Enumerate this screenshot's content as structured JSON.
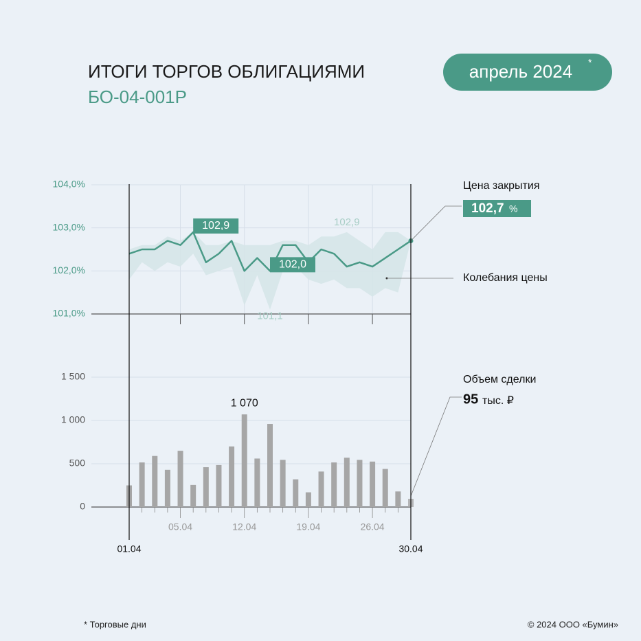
{
  "header": {
    "title": "ИТОГИ ТОРГОВ ОБЛИГАЦИЯМИ",
    "subtitle": "БО-04-001Р",
    "period": "апрель 2024",
    "period_mark": "*"
  },
  "chart_data": [
    {
      "type": "line",
      "ylim": [
        101,
        104
      ],
      "yticks": [
        {
          "value": 101,
          "label": "101,0%"
        },
        {
          "value": 102,
          "label": "102,0%"
        },
        {
          "value": 103,
          "label": "103,0%"
        },
        {
          "value": 104,
          "label": "104,0%"
        }
      ],
      "grid": true,
      "series": [
        {
          "name": "Цена закрытия",
          "color": "#4a9a87",
          "unit": "%",
          "values": [
            102.4,
            102.5,
            102.5,
            102.7,
            102.6,
            102.9,
            102.2,
            102.4,
            102.7,
            102.0,
            102.3,
            102.0,
            102.6,
            102.6,
            102.2,
            102.5,
            102.4,
            102.1,
            102.2,
            102.1,
            102.3,
            102.5,
            102.7
          ],
          "value_labels": [
            null,
            null,
            null,
            null,
            null,
            "102,9",
            null,
            null,
            null,
            null,
            null,
            "102,0",
            null,
            null,
            null,
            null,
            null,
            null,
            null,
            null,
            null,
            null,
            "102,7"
          ]
        },
        {
          "name": "Колебания цены",
          "type": "band",
          "color": "#d5e5e8",
          "high": [
            102.5,
            102.6,
            102.6,
            102.8,
            102.7,
            102.9,
            102.6,
            102.6,
            102.7,
            102.6,
            102.6,
            102.6,
            102.7,
            102.7,
            102.6,
            102.8,
            102.8,
            102.9,
            102.7,
            102.5,
            102.9,
            102.9,
            102.7
          ],
          "low": [
            101.8,
            102.2,
            102.0,
            102.2,
            102.1,
            102.4,
            101.9,
            102.0,
            102.1,
            101.2,
            101.9,
            101.1,
            102.0,
            102.1,
            101.8,
            101.7,
            101.8,
            101.6,
            101.6,
            101.4,
            101.6,
            101.5,
            102.7
          ],
          "high_labels": [
            null,
            null,
            null,
            null,
            null,
            null,
            null,
            null,
            null,
            null,
            null,
            null,
            null,
            null,
            null,
            null,
            null,
            "102,9",
            null,
            null,
            null,
            null,
            null
          ],
          "low_labels": [
            null,
            null,
            null,
            null,
            null,
            null,
            null,
            null,
            null,
            null,
            null,
            "101,1",
            null,
            null,
            null,
            null,
            null,
            null,
            null,
            null,
            null,
            null,
            null
          ]
        }
      ]
    },
    {
      "type": "bar",
      "categories": [
        "01.04",
        null,
        null,
        null,
        "05.04",
        null,
        null,
        null,
        null,
        "12.04",
        null,
        null,
        null,
        null,
        "19.04",
        null,
        null,
        null,
        null,
        "26.04",
        null,
        null,
        "30.04"
      ],
      "ylim": [
        0,
        1500
      ],
      "yticks": [
        0,
        500,
        {
          "value": 1000,
          "label": "1 000"
        },
        {
          "value": 1500,
          "label": "1 500"
        }
      ],
      "grid": true,
      "series": [
        {
          "name": "Объем сделки",
          "color": "#a6a6a6",
          "unit": "тыс. ₽",
          "values": [
            250,
            515,
            590,
            430,
            650,
            255,
            460,
            485,
            700,
            1070,
            560,
            960,
            545,
            320,
            170,
            410,
            515,
            570,
            545,
            525,
            440,
            180,
            95
          ],
          "value_labels": [
            null,
            null,
            null,
            null,
            null,
            null,
            null,
            null,
            null,
            "1 070",
            null,
            null,
            null,
            null,
            null,
            null,
            null,
            null,
            null,
            null,
            null,
            null,
            "95"
          ]
        }
      ]
    }
  ],
  "footer": {
    "note": "* Торговые дни",
    "copyright": "© 2024 ООО «Бумин»"
  }
}
